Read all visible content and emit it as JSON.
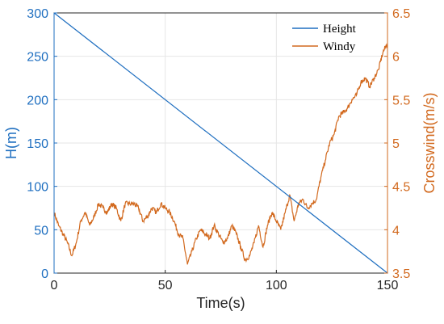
{
  "chart_data": {
    "type": "line",
    "title": "",
    "xlabel": "Time(s)",
    "ylabel_left": "H(m)",
    "ylabel_right": "Crosswind(m/s)",
    "xlim": [
      0,
      150
    ],
    "ylim_left": [
      0,
      300
    ],
    "ylim_right": [
      3.5,
      6.5
    ],
    "x_ticks": [
      "0",
      "50",
      "100",
      "150"
    ],
    "y_left_ticks": [
      "0",
      "50",
      "100",
      "150",
      "200",
      "250",
      "300"
    ],
    "y_right_ticks": [
      "3.5",
      "4",
      "4.5",
      "5",
      "5.5",
      "6",
      "6.5"
    ],
    "grid": true,
    "legend_position": "top-right",
    "colors": {
      "height": "#1f6fc0",
      "windy": "#d2691e",
      "grid": "#e6e6e6",
      "axis_left": "#1f6fc0",
      "axis_right": "#d2691e"
    },
    "series": [
      {
        "name": "Height",
        "axis": "left",
        "x": [
          0,
          150
        ],
        "y": [
          300,
          0
        ]
      },
      {
        "name": "Windy",
        "axis": "right",
        "x": [
          0,
          2,
          4,
          6,
          8,
          10,
          12,
          14,
          16,
          18,
          20,
          22,
          24,
          26,
          28,
          30,
          32,
          34,
          36,
          38,
          40,
          42,
          44,
          46,
          48,
          50,
          52,
          54,
          56,
          58,
          60,
          62,
          64,
          66,
          68,
          70,
          72,
          74,
          76,
          78,
          80,
          82,
          84,
          86,
          88,
          90,
          92,
          94,
          96,
          98,
          100,
          102,
          104,
          106,
          108,
          110,
          112,
          114,
          116,
          118,
          120,
          122,
          124,
          126,
          128,
          130,
          132,
          134,
          136,
          138,
          140,
          142,
          144,
          146,
          148,
          150
        ],
        "y": [
          4.2,
          4.05,
          3.95,
          3.85,
          3.7,
          3.85,
          4.1,
          4.2,
          4.05,
          4.15,
          4.3,
          4.25,
          4.2,
          4.3,
          4.25,
          4.1,
          4.3,
          4.3,
          4.3,
          4.25,
          4.1,
          4.15,
          4.25,
          4.2,
          4.3,
          4.25,
          4.2,
          4.1,
          3.95,
          3.9,
          3.6,
          3.75,
          3.9,
          4.0,
          3.95,
          3.9,
          4.05,
          3.95,
          3.85,
          3.9,
          4.05,
          3.95,
          3.8,
          3.65,
          3.7,
          3.85,
          4.05,
          3.8,
          4.05,
          4.2,
          4.1,
          4.0,
          4.2,
          4.4,
          4.1,
          4.3,
          4.35,
          4.25,
          4.3,
          4.35,
          4.6,
          4.8,
          5.0,
          5.1,
          5.3,
          5.35,
          5.4,
          5.5,
          5.55,
          5.7,
          5.75,
          5.65,
          5.75,
          5.85,
          6.05,
          6.15
        ]
      }
    ]
  }
}
